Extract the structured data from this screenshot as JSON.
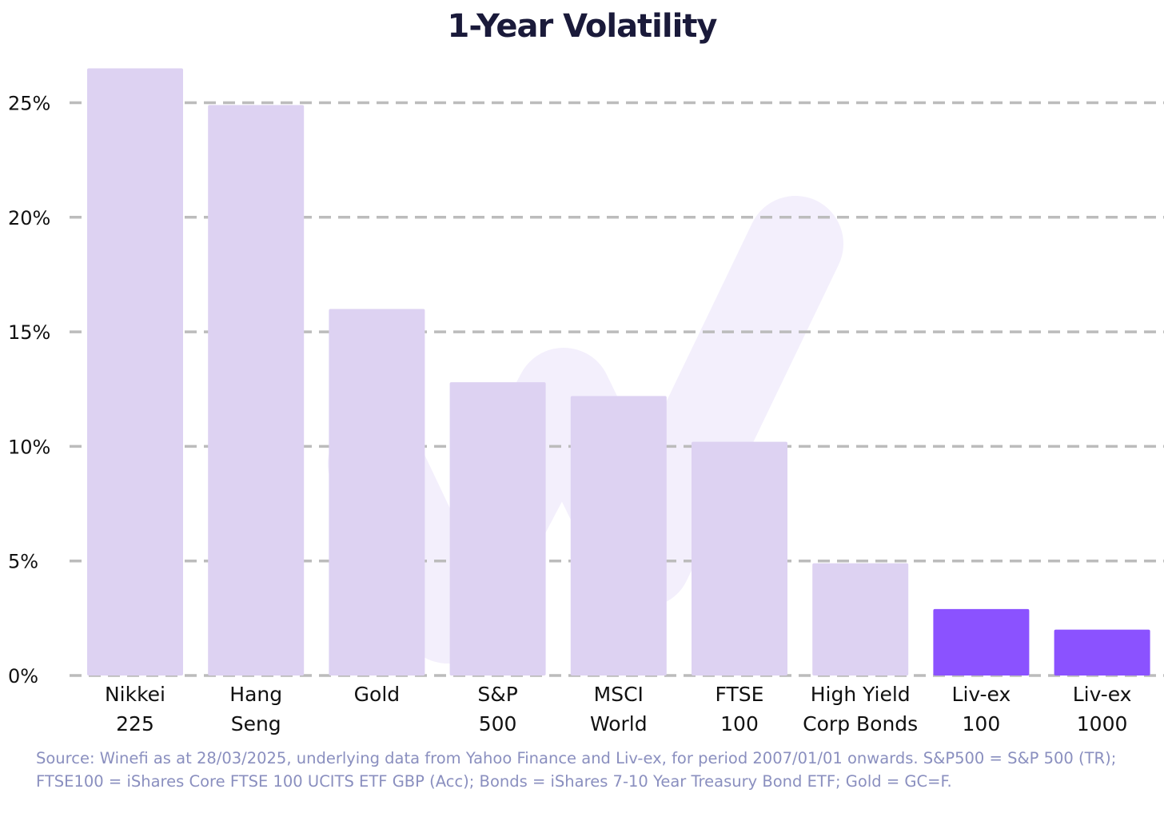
{
  "chart_data": {
    "type": "bar",
    "title": "1-Year Volatility",
    "xlabel": "",
    "ylabel": "",
    "ylim": [
      0,
      26.5
    ],
    "yticks": [
      0,
      5,
      10,
      15,
      20,
      25
    ],
    "ytick_labels": [
      "0%",
      "5%",
      "10%",
      "15%",
      "20%",
      "25%"
    ],
    "grid": true,
    "categories": [
      [
        "Nikkei",
        "225"
      ],
      [
        "Hang",
        "Seng"
      ],
      [
        "Gold"
      ],
      [
        "S&P",
        "500"
      ],
      [
        "MSCI",
        "World"
      ],
      [
        "FTSE",
        "100"
      ],
      [
        "High Yield",
        "Corp Bonds"
      ],
      [
        "Liv-ex",
        "100"
      ],
      [
        "Liv-ex",
        "1000"
      ]
    ],
    "values": [
      26.5,
      24.9,
      16.0,
      12.8,
      12.2,
      10.2,
      4.9,
      2.9,
      2.0
    ],
    "highlighted": [
      false,
      false,
      false,
      false,
      false,
      false,
      false,
      true,
      true
    ]
  },
  "colors": {
    "bar": "#ddd2f2",
    "bar_highlight": "#8b52ff",
    "grid": "#bcbcbc",
    "title": "#1a1a3a",
    "source": "#8a8fbf",
    "watermark": "#f1ecfb"
  },
  "footnote": {
    "line1": "Source: Winefi as at 28/03/2025, underlying data from Yahoo Finance and Liv-ex, for period 2007/01/01 onwards. S&P500 = S&P 500 (TR);",
    "line2": "FTSE100 = iShares Core FTSE 100 UCITS ETF GBP (Acc); Bonds = iShares 7-10 Year Treasury Bond ETF; Gold = GC=F."
  }
}
